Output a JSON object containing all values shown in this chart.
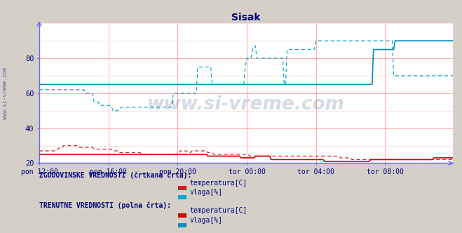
{
  "title": "Sisak",
  "title_color": "#000080",
  "bg_color": "#d4d0c8",
  "plot_bg_color": "#ffffff",
  "ylim": [
    20,
    100
  ],
  "yticks": [
    20,
    40,
    60,
    80
  ],
  "x_tick_labels": [
    "pon 12:00",
    "pon 16:00",
    "pon 20:00",
    "tor 00:00",
    "tor 04:00",
    "tor 08:00"
  ],
  "x_tick_positions": [
    0,
    48,
    96,
    144,
    192,
    240
  ],
  "n_points": 288,
  "watermark": "www.si-vreme.com",
  "watermark_color": "#1a3a6e",
  "watermark_alpha": 0.18,
  "grid_color": "#ff9999",
  "axis_color": "#6666ff",
  "temp_hist_color": "#cc2222",
  "hum_hist_color": "#00aacc",
  "temp_curr_color": "#cc0000",
  "hum_curr_color": "#008fbe",
  "legend_text_color": "#000080",
  "legend_section1": "ZGODOVINSKE VREDNOSTI (črtkana črta):",
  "legend_section2": "TRENUTNE VREDNOSTI (polna črta):",
  "legend_hist_label1": "temperatura[C]",
  "legend_hist_label2": "vlaga[%]",
  "legend_curr_label1": "temperatura[C]",
  "legend_curr_label2": "vlaga[%]",
  "temp_hist_data": [
    27,
    27,
    27,
    27,
    27,
    27,
    27,
    27,
    27,
    27,
    27,
    27,
    28,
    28,
    29,
    29,
    29,
    30,
    30,
    30,
    30,
    30,
    30,
    30,
    30,
    30,
    30,
    30,
    29,
    29,
    29,
    29,
    29,
    29,
    29,
    29,
    29,
    29,
    28,
    28,
    28,
    28,
    28,
    28,
    28,
    28,
    28,
    28,
    28,
    28,
    28,
    27,
    27,
    27,
    27,
    27,
    26,
    26,
    26,
    26,
    26,
    26,
    26,
    26,
    26,
    26,
    26,
    26,
    26,
    26,
    26,
    25,
    25,
    25,
    25,
    25,
    25,
    25,
    25,
    25,
    25,
    25,
    25,
    25,
    25,
    25,
    25,
    25,
    25,
    25,
    25,
    25,
    25,
    25,
    25,
    25,
    26,
    26,
    27,
    27,
    27,
    27,
    27,
    26,
    26,
    26,
    27,
    27,
    27,
    27,
    27,
    27,
    27,
    27,
    27,
    27,
    27,
    26,
    26,
    26,
    26,
    25,
    25,
    25,
    25,
    25,
    25,
    25,
    25,
    25,
    25,
    25,
    25,
    25,
    25,
    25,
    25,
    25,
    25,
    25,
    25,
    25,
    25,
    25,
    25,
    25,
    24,
    24,
    24,
    24,
    24,
    24,
    24,
    24,
    24,
    24,
    24,
    24,
    24,
    24,
    24,
    24,
    24,
    24,
    24,
    24,
    24,
    24,
    24,
    24,
    24,
    24,
    24,
    24,
    24,
    24,
    24,
    24,
    24,
    24,
    24,
    24,
    24,
    24,
    24,
    24,
    24,
    24,
    24,
    24,
    24,
    24,
    24,
    24,
    24,
    24,
    24,
    24,
    24,
    24,
    24,
    24,
    24,
    24,
    24,
    24,
    24,
    24,
    24,
    23,
    23,
    23,
    23,
    23,
    23,
    23,
    23,
    22,
    22,
    22,
    22,
    22,
    22,
    22,
    22,
    22,
    22,
    22,
    22,
    22,
    22,
    22,
    22,
    22,
    22,
    22,
    22,
    22,
    22,
    22,
    22,
    22,
    22,
    22,
    22,
    22,
    22,
    22,
    22,
    22,
    22,
    22,
    22,
    22,
    22,
    22,
    22,
    22,
    22,
    22,
    22,
    22,
    22,
    22,
    22,
    22,
    22,
    22,
    22,
    22,
    22,
    22,
    22,
    22,
    22,
    22,
    22,
    22,
    22,
    22,
    22,
    22,
    22,
    22,
    22,
    22,
    22,
    22
  ],
  "hum_hist_data": [
    62,
    62,
    62,
    62,
    62,
    62,
    62,
    62,
    62,
    62,
    62,
    62,
    62,
    62,
    62,
    62,
    62,
    62,
    62,
    62,
    62,
    62,
    62,
    62,
    62,
    62,
    62,
    62,
    62,
    62,
    62,
    62,
    60,
    60,
    60,
    60,
    60,
    60,
    55,
    55,
    55,
    55,
    53,
    53,
    53,
    53,
    53,
    53,
    53,
    53,
    53,
    50,
    50,
    50,
    50,
    50,
    51,
    52,
    52,
    52,
    52,
    52,
    52,
    52,
    52,
    52,
    52,
    52,
    52,
    52,
    52,
    52,
    52,
    52,
    52,
    52,
    52,
    52,
    52,
    52,
    52,
    52,
    52,
    52,
    52,
    52,
    52,
    52,
    52,
    52,
    52,
    52,
    52,
    60,
    60,
    60,
    60,
    60,
    60,
    60,
    60,
    60,
    60,
    60,
    60,
    60,
    60,
    60,
    60,
    60,
    75,
    75,
    75,
    75,
    75,
    75,
    75,
    75,
    75,
    75,
    65,
    65,
    65,
    65,
    65,
    65,
    65,
    65,
    65,
    65,
    65,
    65,
    65,
    65,
    65,
    65,
    65,
    65,
    65,
    65,
    65,
    65,
    65,
    75,
    80,
    80,
    80,
    80,
    85,
    87,
    87,
    80,
    80,
    80,
    80,
    80,
    80,
    80,
    80,
    80,
    80,
    80,
    80,
    80,
    80,
    80,
    80,
    80,
    80,
    80,
    65,
    65,
    85,
    85,
    85,
    85,
    85,
    85,
    85,
    85,
    85,
    85,
    85,
    85,
    85,
    85,
    85,
    85,
    85,
    85,
    85,
    85,
    90,
    90,
    90,
    90,
    90,
    90,
    90,
    90,
    90,
    90,
    90,
    90,
    90,
    90,
    90,
    90,
    90,
    90,
    90,
    90,
    90,
    90,
    90,
    90,
    90,
    90,
    90,
    90,
    90,
    90,
    90,
    90,
    90,
    90,
    90,
    90,
    90,
    90,
    90,
    90,
    90,
    90,
    90,
    90,
    90,
    90,
    90,
    90,
    90,
    90,
    90,
    90,
    90,
    90,
    70,
    70,
    70,
    70,
    70,
    70,
    70,
    70,
    70,
    70,
    70,
    70,
    70,
    70,
    70,
    70,
    70,
    70,
    70,
    70,
    70,
    70,
    70,
    70,
    70,
    70,
    70,
    70,
    70,
    70,
    70,
    70,
    70,
    70,
    70,
    70,
    70,
    70,
    70,
    70,
    70,
    70
  ],
  "temp_curr_data": [
    25,
    25,
    25,
    25,
    25,
    25,
    25,
    25,
    25,
    25,
    25,
    25,
    25,
    25,
    25,
    25,
    25,
    25,
    25,
    25,
    25,
    25,
    25,
    25,
    25,
    25,
    25,
    25,
    25,
    25,
    25,
    25,
    25,
    25,
    25,
    25,
    25,
    25,
    25,
    25,
    25,
    25,
    25,
    25,
    25,
    25,
    25,
    25,
    25,
    25,
    25,
    25,
    25,
    25,
    25,
    25,
    25,
    25,
    25,
    25,
    25,
    25,
    25,
    25,
    25,
    25,
    25,
    25,
    25,
    25,
    25,
    25,
    25,
    25,
    25,
    25,
    25,
    25,
    25,
    25,
    25,
    25,
    25,
    25,
    25,
    25,
    25,
    25,
    25,
    25,
    25,
    25,
    25,
    25,
    25,
    25,
    25,
    25,
    25,
    25,
    25,
    25,
    25,
    25,
    25,
    25,
    25,
    25,
    25,
    25,
    25,
    25,
    25,
    25,
    25,
    25,
    25,
    24,
    24,
    24,
    24,
    24,
    24,
    24,
    24,
    24,
    24,
    24,
    24,
    24,
    24,
    24,
    24,
    24,
    24,
    24,
    24,
    24,
    24,
    24,
    23,
    23,
    23,
    23,
    23,
    23,
    23,
    23,
    23,
    23,
    24,
    24,
    24,
    24,
    24,
    24,
    24,
    24,
    24,
    24,
    24,
    22,
    22,
    22,
    22,
    22,
    22,
    22,
    22,
    22,
    22,
    22,
    22,
    22,
    22,
    22,
    22,
    22,
    22,
    22,
    22,
    22,
    22,
    22,
    22,
    22,
    22,
    22,
    22,
    22,
    22,
    22,
    22,
    22,
    22,
    22,
    22,
    22,
    21,
    21,
    21,
    21,
    21,
    21,
    21,
    21,
    21,
    21,
    21,
    21,
    21,
    21,
    21,
    21,
    21,
    21,
    21,
    21,
    21,
    21,
    21,
    21,
    21,
    21,
    21,
    21,
    21,
    21,
    21,
    21,
    22,
    22,
    22,
    22,
    22,
    22,
    22,
    22,
    22,
    22,
    22,
    22,
    22,
    22,
    22,
    22,
    22,
    22,
    22,
    22,
    22,
    22,
    22,
    22,
    22,
    22,
    22,
    22,
    22,
    22,
    22,
    22,
    22,
    22,
    22,
    22,
    22,
    22,
    22,
    22,
    22,
    22,
    22,
    22,
    23,
    23,
    23,
    23,
    23,
    23,
    23,
    23,
    23,
    23,
    23,
    23,
    23,
    23
  ],
  "hum_curr_data": [
    65,
    65,
    65,
    65,
    65,
    65,
    65,
    65,
    65,
    65,
    65,
    65,
    65,
    65,
    65,
    65,
    65,
    65,
    65,
    65,
    65,
    65,
    65,
    65,
    65,
    65,
    65,
    65,
    65,
    65,
    65,
    65,
    65,
    65,
    65,
    65,
    65,
    65,
    65,
    65,
    65,
    65,
    65,
    65,
    65,
    65,
    65,
    65,
    65,
    65,
    65,
    65,
    65,
    65,
    65,
    65,
    65,
    65,
    65,
    65,
    65,
    65,
    65,
    65,
    65,
    65,
    65,
    65,
    65,
    65,
    65,
    65,
    65,
    65,
    65,
    65,
    65,
    65,
    65,
    65,
    65,
    65,
    65,
    65,
    65,
    65,
    65,
    65,
    65,
    65,
    65,
    65,
    65,
    65,
    65,
    65,
    65,
    65,
    65,
    65,
    65,
    65,
    65,
    65,
    65,
    65,
    65,
    65,
    65,
    65,
    65,
    65,
    65,
    65,
    65,
    65,
    65,
    65,
    65,
    65,
    65,
    65,
    65,
    65,
    65,
    65,
    65,
    65,
    65,
    65,
    65,
    65,
    65,
    65,
    65,
    65,
    65,
    65,
    65,
    65,
    65,
    65,
    65,
    65,
    65,
    65,
    65,
    65,
    65,
    65,
    65,
    65,
    65,
    65,
    65,
    65,
    65,
    65,
    65,
    65,
    65,
    65,
    65,
    65,
    65,
    65,
    65,
    65,
    65,
    65,
    65,
    65,
    65,
    65,
    65,
    65,
    65,
    65,
    65,
    65,
    65,
    65,
    65,
    65,
    65,
    65,
    65,
    65,
    65,
    65,
    65,
    65,
    65,
    65,
    65,
    65,
    65,
    65,
    65,
    65,
    65,
    65,
    65,
    65,
    65,
    65,
    65,
    65,
    65,
    65,
    65,
    65,
    65,
    65,
    65,
    65,
    65,
    65,
    65,
    65,
    65,
    65,
    65,
    65,
    65,
    65,
    65,
    65,
    65,
    65,
    65,
    65,
    85,
    85,
    85,
    85,
    85,
    85,
    85,
    85,
    85,
    85,
    85,
    85,
    85,
    85,
    85,
    90,
    90,
    90,
    90,
    90,
    90,
    90,
    90,
    90,
    90,
    90,
    90,
    90,
    90,
    90,
    90,
    90,
    90,
    90,
    90,
    90,
    90,
    90,
    90,
    90,
    90,
    90,
    90,
    90,
    90,
    90,
    90,
    90,
    90,
    90,
    90,
    90,
    90,
    90,
    90,
    90
  ]
}
